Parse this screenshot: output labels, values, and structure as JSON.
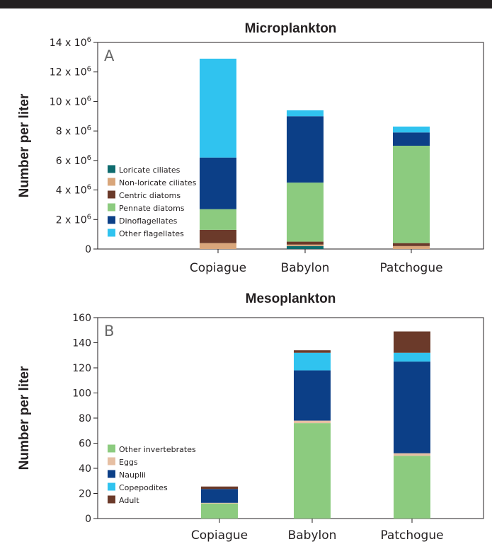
{
  "chart_data": [
    {
      "type": "bar",
      "stacked": true,
      "title": "Microplankton",
      "panel_label": "A",
      "ylabel": "Number per liter",
      "ylim": [
        0,
        14000000
      ],
      "yticks": [
        {
          "value": 0,
          "label": "0"
        },
        {
          "value": 2000000,
          "label": "2 x 10",
          "exp": "6"
        },
        {
          "value": 4000000,
          "label": "4 x 10",
          "exp": "6"
        },
        {
          "value": 6000000,
          "label": "6 x 10",
          "exp": "6"
        },
        {
          "value": 8000000,
          "label": "8 x 10",
          "exp": "6"
        },
        {
          "value": 10000000,
          "label": "10 x 10",
          "exp": "6"
        },
        {
          "value": 12000000,
          "label": "12 x 10",
          "exp": "6"
        },
        {
          "value": 14000000,
          "label": "14 x 10",
          "exp": "6"
        }
      ],
      "categories": [
        "Copiague",
        "Babylon",
        "Patchogue"
      ],
      "legend_position": "bottom-left",
      "series": [
        {
          "name": "Loricate ciliates",
          "color": "#0e6b6e",
          "values": [
            0,
            200000,
            0
          ]
        },
        {
          "name": "Non-loricate ciliates",
          "color": "#d9a67b",
          "values": [
            400000,
            100000,
            200000
          ]
        },
        {
          "name": "Centric diatoms",
          "color": "#6b3a2a",
          "values": [
            900000,
            200000,
            200000
          ]
        },
        {
          "name": "Pennate diatoms",
          "color": "#8ccb7f",
          "values": [
            1400000,
            4000000,
            6600000
          ]
        },
        {
          "name": "Dinoflagellates",
          "color": "#0c3f87",
          "values": [
            3500000,
            4500000,
            900000
          ]
        },
        {
          "name": "Other flagellates",
          "color": "#30c3ef",
          "values": [
            6700000,
            400000,
            400000
          ]
        }
      ]
    },
    {
      "type": "bar",
      "stacked": true,
      "title": "Mesoplankton",
      "panel_label": "B",
      "ylabel": "Number per liter",
      "ylim": [
        0,
        160
      ],
      "yticks": [
        {
          "value": 0,
          "label": "0"
        },
        {
          "value": 20,
          "label": "20"
        },
        {
          "value": 40,
          "label": "40"
        },
        {
          "value": 60,
          "label": "60"
        },
        {
          "value": 80,
          "label": "80"
        },
        {
          "value": 100,
          "label": "100"
        },
        {
          "value": 120,
          "label": "120"
        },
        {
          "value": 140,
          "label": "140"
        },
        {
          "value": 160,
          "label": "160"
        }
      ],
      "categories": [
        "Copiague",
        "Babylon",
        "Patchogue"
      ],
      "legend_position": "bottom-left",
      "series": [
        {
          "name": "Other invertebrates",
          "color": "#8ccb7f",
          "values": [
            12,
            76,
            50
          ]
        },
        {
          "name": "Eggs",
          "color": "#e6bfa3",
          "values": [
            0.5,
            2,
            2
          ]
        },
        {
          "name": "Nauplii",
          "color": "#0c3f87",
          "values": [
            11,
            40,
            73
          ]
        },
        {
          "name": "Copepodites",
          "color": "#30c3ef",
          "values": [
            0,
            14,
            7
          ]
        },
        {
          "name": "Adult",
          "color": "#6b3a2a",
          "values": [
            2,
            2,
            17
          ]
        }
      ]
    }
  ]
}
